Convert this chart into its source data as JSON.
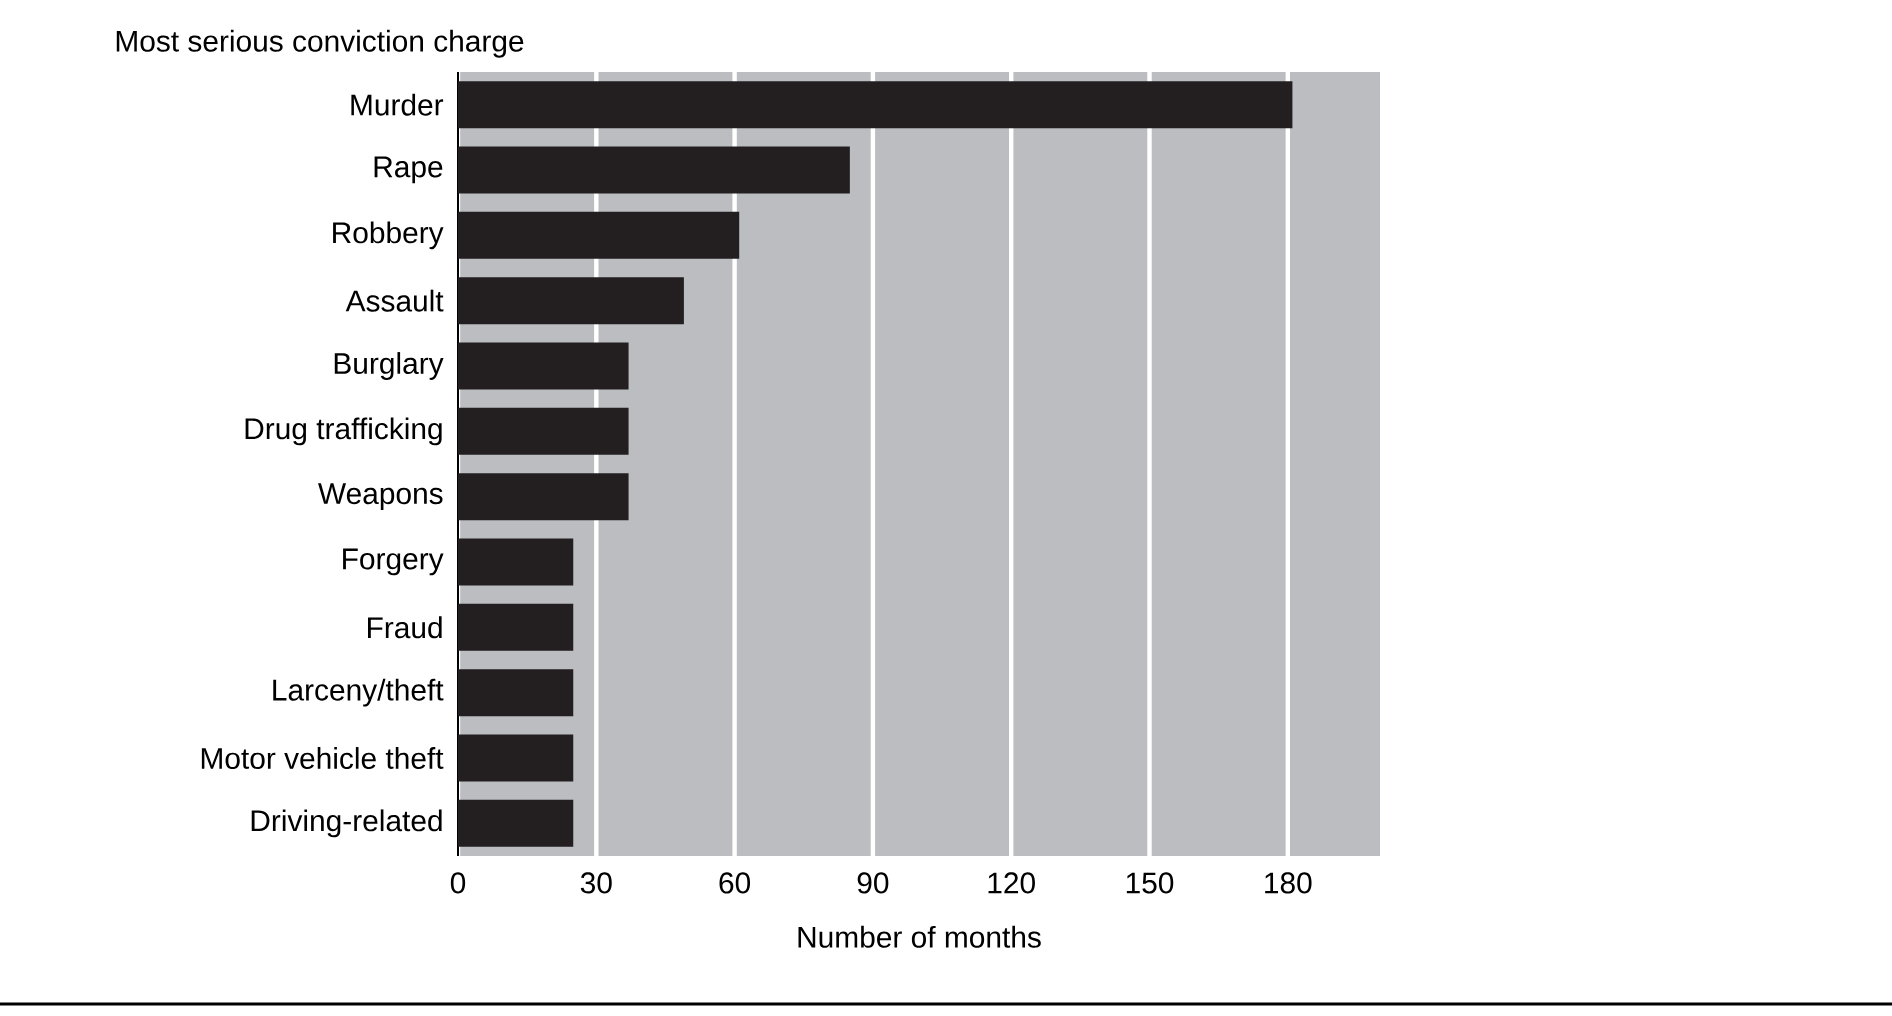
{
  "chart_data": {
    "type": "bar",
    "orientation": "horizontal",
    "ylabel": "Most serious conviction charge",
    "xlabel": "Number of months",
    "categories": [
      "Murder",
      "Rape",
      "Robbery",
      "Assault",
      "Burglary",
      "Drug trafficking",
      "Weapons",
      "Forgery",
      "Fraud",
      "Larceny/theft",
      "Motor vehicle theft",
      "Driving-related"
    ],
    "values": [
      181,
      85,
      61,
      49,
      37,
      37,
      37,
      25,
      25,
      25,
      25,
      25
    ],
    "color": "#231f20",
    "xlim": [
      0,
      200
    ],
    "xticks": [
      0,
      30,
      60,
      90,
      120,
      150,
      180
    ],
    "grid": "x"
  }
}
